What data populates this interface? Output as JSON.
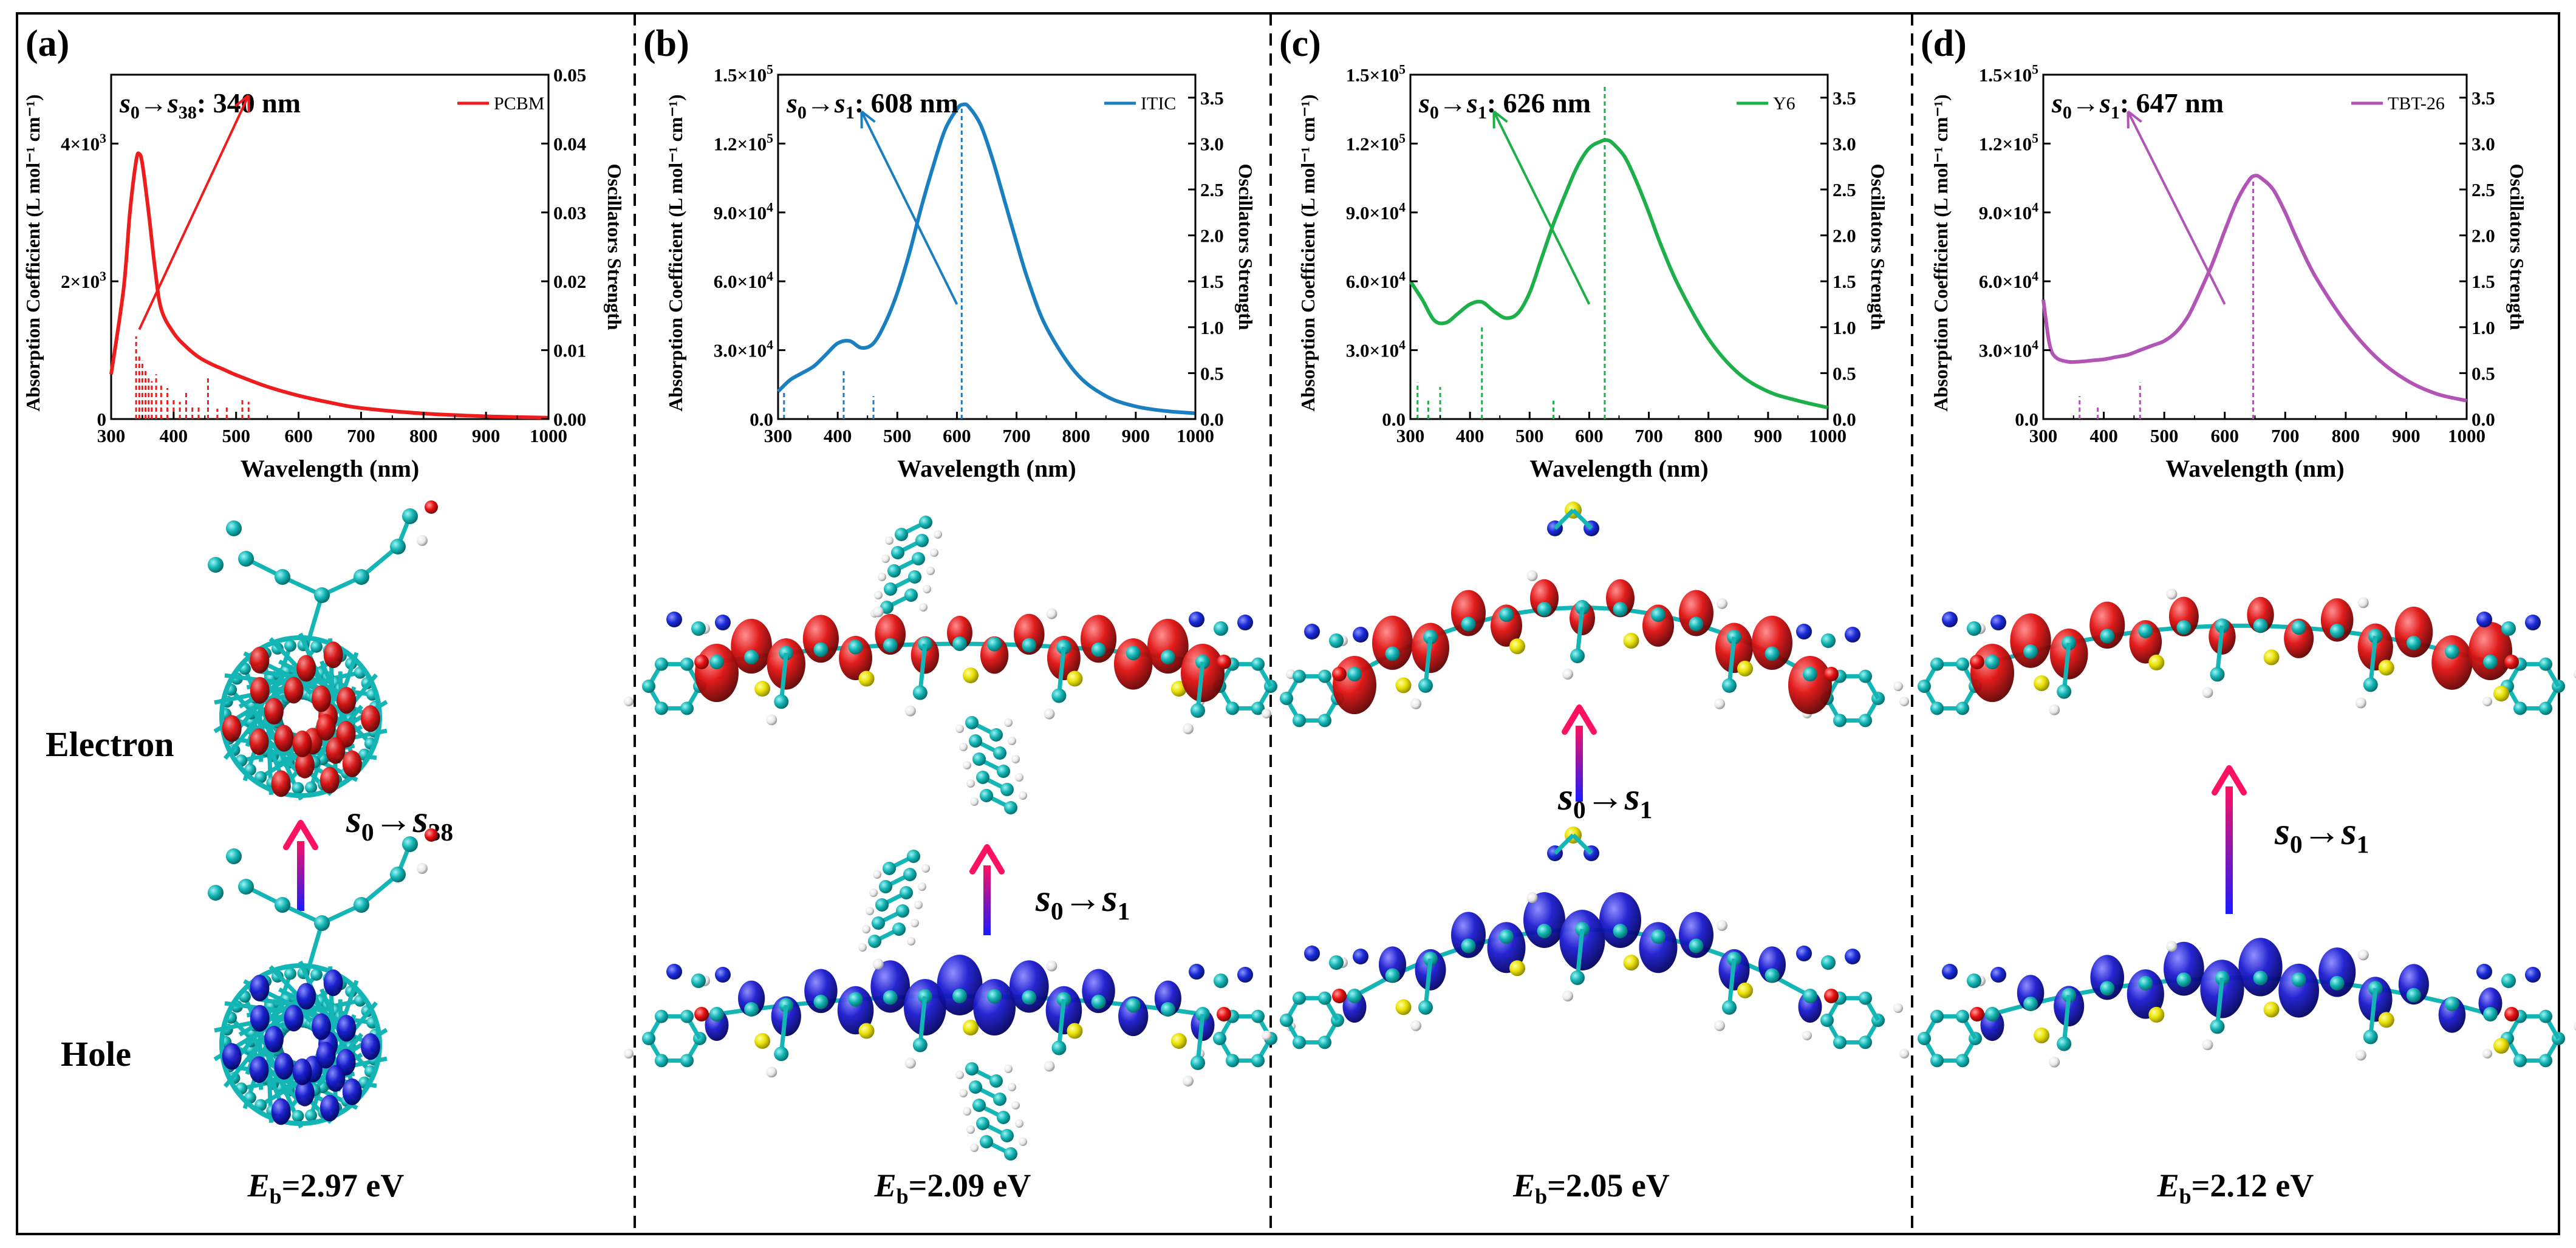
{
  "figure": {
    "axis": {
      "xlabel": "Wavelength (nm)",
      "ylabel_left": "Absorption Coefficient (L mol⁻¹ cm⁻¹)",
      "ylabel_right": "Oscillators Strength"
    },
    "row_labels": {
      "electron": "Electron",
      "hole": "Hole"
    },
    "panels": [
      {
        "letter": "(a)",
        "transition": {
          "from": "s",
          "from_sub": "0",
          "to": "s",
          "to_sub": "38",
          "value": "340 nm"
        },
        "legend": "PCBM",
        "color": "#ee1c1c",
        "eb_symbol": "E",
        "eb_sub": "b",
        "eb_value": "=2.97 eV"
      },
      {
        "letter": "(b)",
        "transition": {
          "from": "s",
          "from_sub": "0",
          "to": "s",
          "to_sub": "1",
          "value": "608 nm"
        },
        "legend": "ITIC",
        "color": "#1a7fc1",
        "eb_symbol": "E",
        "eb_sub": "b",
        "eb_value": "=2.09 eV"
      },
      {
        "letter": "(c)",
        "transition": {
          "from": "s",
          "from_sub": "0",
          "to": "s",
          "to_sub": "1",
          "value": "626 nm"
        },
        "legend": "Y6",
        "color": "#1db04a",
        "eb_symbol": "E",
        "eb_sub": "b",
        "eb_value": "=2.05 eV"
      },
      {
        "letter": "(d)",
        "transition": {
          "from": "s",
          "from_sub": "0",
          "to": "s",
          "to_sub": "1",
          "value": "647 nm"
        },
        "legend": "TBT-26",
        "color": "#b254b5",
        "eb_symbol": "E",
        "eb_sub": "b",
        "eb_value": "=2.12 eV"
      }
    ]
  },
  "colors": {
    "frame": "#000000",
    "electron_lobe": "#e01010",
    "hole_lobe": "#1a1ad0",
    "atom_c": "#14b5b5",
    "atom_s": "#e8e000",
    "atom_n": "#1a2bd8",
    "atom_o": "#e81010",
    "atom_h": "#f2f2f2",
    "atom_f": "#e89a9a",
    "arrow_top": "#ff1060",
    "arrow_bottom": "#1a1aff"
  },
  "chart_data": [
    {
      "type": "line",
      "series_name": "PCBM",
      "xlabel": "Wavelength (nm)",
      "ylabel": "Absorption Coefficient (L mol⁻¹ cm⁻¹)",
      "y2label": "Oscillators Strength",
      "xlim": [
        300,
        1000
      ],
      "xticks": [
        300,
        400,
        500,
        600,
        700,
        800,
        900,
        1000
      ],
      "ylim": [
        0,
        5000
      ],
      "yticks": [
        {
          "v": 0,
          "label": "0"
        },
        {
          "v": 2000,
          "label": "2×10³"
        },
        {
          "v": 4000,
          "label": "4×10³"
        }
      ],
      "y2lim": [
        0,
        0.05
      ],
      "y2ticks": [
        "0.00",
        "0.01",
        "0.02",
        "0.03",
        "0.04",
        "0.05"
      ],
      "curve": {
        "x": [
          300,
          320,
          330,
          340,
          345,
          350,
          360,
          370,
          380,
          400,
          420,
          440,
          460,
          480,
          500,
          550,
          600,
          650,
          700,
          800,
          900,
          1000
        ],
        "y": [
          650,
          1900,
          3000,
          3750,
          3850,
          3700,
          3000,
          2200,
          1600,
          1250,
          1050,
          900,
          800,
          720,
          640,
          470,
          340,
          240,
          160,
          80,
          40,
          20
        ]
      },
      "sticks": {
        "x": [
          340,
          345,
          350,
          355,
          360,
          365,
          372,
          380,
          390,
          400,
          410,
          420,
          430,
          440,
          455,
          470,
          485,
          510,
          520
        ],
        "y": [
          0.012,
          0.0095,
          0.0085,
          0.007,
          0.0062,
          0.0055,
          0.0065,
          0.005,
          0.0045,
          0.003,
          0.0025,
          0.0042,
          0.002,
          0.002,
          0.006,
          0.0015,
          0.0018,
          0.003,
          0.0025
        ]
      },
      "peak_marker": 340
    },
    {
      "type": "line",
      "series_name": "ITIC",
      "xlabel": "Wavelength (nm)",
      "ylabel": "Absorption Coefficient (L mol⁻¹ cm⁻¹)",
      "y2label": "Oscillators Strength",
      "xlim": [
        300,
        1000
      ],
      "xticks": [
        300,
        400,
        500,
        600,
        700,
        800,
        900,
        1000
      ],
      "ylim": [
        0,
        150000
      ],
      "yticks": [
        {
          "v": 0,
          "label": "0.0"
        },
        {
          "v": 30000,
          "label": "3.0×10⁴"
        },
        {
          "v": 60000,
          "label": "6.0×10⁴"
        },
        {
          "v": 90000,
          "label": "9.0×10⁴"
        },
        {
          "v": 120000,
          "label": "1.2×10⁵"
        },
        {
          "v": 150000,
          "label": "1.5×10⁵"
        }
      ],
      "y2lim": [
        0,
        3.75
      ],
      "y2ticks": [
        "0.0",
        "0.5",
        "1.0",
        "1.5",
        "2.0",
        "2.5",
        "3.0",
        "3.5"
      ],
      "curve": {
        "x": [
          300,
          320,
          340,
          360,
          380,
          400,
          420,
          440,
          460,
          480,
          500,
          520,
          540,
          560,
          580,
          600,
          610,
          620,
          640,
          660,
          680,
          700,
          720,
          750,
          800,
          850,
          900,
          950,
          1000
        ],
        "y": [
          12000,
          17000,
          20000,
          23000,
          28000,
          33000,
          34000,
          31000,
          33000,
          42000,
          55000,
          72000,
          92000,
          110000,
          126000,
          135000,
          137000,
          136000,
          128000,
          113000,
          95000,
          77000,
          60000,
          40000,
          20000,
          10000,
          5500,
          3500,
          2500
        ]
      },
      "sticks": {
        "x": [
          310,
          410,
          460,
          608
        ],
        "y": [
          0.3,
          0.55,
          0.25,
          3.4
        ]
      },
      "peak_marker": 608
    },
    {
      "type": "line",
      "series_name": "Y6",
      "xlabel": "Wavelength (nm)",
      "ylabel": "Absorption Coefficient (L mol⁻¹ cm⁻¹)",
      "y2label": "Oscillators Strength",
      "xlim": [
        300,
        1000
      ],
      "xticks": [
        300,
        400,
        500,
        600,
        700,
        800,
        900,
        1000
      ],
      "ylim": [
        0,
        150000
      ],
      "yticks": [
        {
          "v": 0,
          "label": "0.0"
        },
        {
          "v": 30000,
          "label": "3.0×10⁴"
        },
        {
          "v": 60000,
          "label": "6.0×10⁴"
        },
        {
          "v": 90000,
          "label": "9.0×10⁴"
        },
        {
          "v": 120000,
          "label": "1.2×10⁵"
        },
        {
          "v": 150000,
          "label": "1.5×10⁵"
        }
      ],
      "y2lim": [
        0,
        3.75
      ],
      "y2ticks": [
        "0.0",
        "0.5",
        "1.0",
        "1.5",
        "2.0",
        "2.5",
        "3.0",
        "3.5"
      ],
      "curve": {
        "x": [
          300,
          320,
          340,
          360,
          380,
          400,
          420,
          440,
          460,
          480,
          500,
          520,
          540,
          560,
          580,
          600,
          620,
          630,
          640,
          660,
          680,
          700,
          720,
          750,
          800,
          850,
          900,
          950,
          1000
        ],
        "y": [
          60000,
          52000,
          43000,
          42000,
          46000,
          50000,
          51000,
          47000,
          44000,
          46000,
          55000,
          70000,
          85000,
          98000,
          110000,
          118000,
          121000,
          121500,
          120000,
          114000,
          103000,
          90000,
          76000,
          58000,
          35000,
          20000,
          12000,
          8000,
          5000
        ]
      },
      "sticks": {
        "x": [
          312,
          330,
          350,
          420,
          540,
          626
        ],
        "y": [
          0.4,
          0.2,
          0.35,
          1.0,
          0.2,
          3.65
        ]
      },
      "peak_marker": 626
    },
    {
      "type": "line",
      "series_name": "TBT-26",
      "xlabel": "Wavelength (nm)",
      "ylabel": "Absorption Coefficient (L mol⁻¹ cm⁻¹)",
      "y2label": "Oscillators Strength",
      "xlim": [
        300,
        1000
      ],
      "xticks": [
        300,
        400,
        500,
        600,
        700,
        800,
        900,
        1000
      ],
      "ylim": [
        0,
        150000
      ],
      "yticks": [
        {
          "v": 0,
          "label": "0.0"
        },
        {
          "v": 30000,
          "label": "3.0×10⁴"
        },
        {
          "v": 60000,
          "label": "6.0×10⁴"
        },
        {
          "v": 90000,
          "label": "9.0×10⁴"
        },
        {
          "v": 120000,
          "label": "1.2×10⁵"
        },
        {
          "v": 150000,
          "label": "1.5×10⁵"
        }
      ],
      "y2lim": [
        0,
        3.75
      ],
      "y2ticks": [
        "0.0",
        "0.5",
        "1.0",
        "1.5",
        "2.0",
        "2.5",
        "3.0",
        "3.5"
      ],
      "curve": {
        "x": [
          300,
          310,
          320,
          340,
          360,
          380,
          400,
          420,
          440,
          460,
          480,
          500,
          520,
          540,
          560,
          580,
          600,
          620,
          640,
          650,
          660,
          680,
          700,
          720,
          750,
          800,
          850,
          900,
          950,
          1000
        ],
        "y": [
          52000,
          33000,
          27000,
          25000,
          25000,
          25500,
          26000,
          27000,
          28000,
          30000,
          32000,
          34000,
          38000,
          45000,
          56000,
          68000,
          82000,
          95000,
          104000,
          106000,
          105000,
          100000,
          90000,
          78000,
          62000,
          42000,
          27000,
          17000,
          11000,
          8000
        ]
      },
      "sticks": {
        "x": [
          360,
          390,
          460,
          647
        ],
        "y": [
          0.25,
          0.15,
          0.4,
          2.6
        ]
      },
      "peak_marker": 647
    }
  ]
}
